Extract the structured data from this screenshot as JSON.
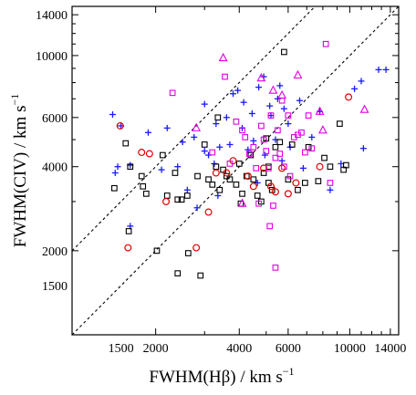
{
  "chart_data": {
    "type": "scatter",
    "xlabel": "FWHM(Hβ) / km s",
    "xlabel_sup": "−1",
    "ylabel": "FWHM(CIV) / km s",
    "ylabel_sup": "−1",
    "x_scale": "log",
    "y_scale": "log",
    "xlim": [
      1000,
      15000
    ],
    "ylim": [
      1000,
      15000
    ],
    "x_ticks": [
      1500,
      2000,
      4000,
      6000,
      10000,
      14000
    ],
    "x_tick_labels": [
      "1500",
      "2000",
      "4000",
      "6000",
      "10000",
      "14000"
    ],
    "y_ticks": [
      1500,
      2000,
      4000,
      6000,
      10000,
      14000
    ],
    "y_tick_labels": [
      "1500",
      "2000",
      "4000",
      "6000",
      "10000",
      "14000"
    ],
    "reference_lines": [
      {
        "style": "dashed",
        "relation": "y = x"
      },
      {
        "style": "dashed",
        "relation": "y = 2x"
      }
    ],
    "grid": false,
    "series": [
      {
        "marker": "plus",
        "color": "#1a1aff",
        "points": [
          [
            1400,
            6150
          ],
          [
            1430,
            3800
          ],
          [
            1460,
            4000
          ],
          [
            1500,
            5600
          ],
          [
            1620,
            4050
          ],
          [
            1620,
            2450
          ],
          [
            1880,
            5300
          ],
          [
            2100,
            3900
          ],
          [
            2200,
            5500
          ],
          [
            2400,
            4000
          ],
          [
            2500,
            4900
          ],
          [
            2600,
            3300
          ],
          [
            2750,
            5100
          ],
          [
            2820,
            2850
          ],
          [
            3000,
            6700
          ],
          [
            3000,
            4550
          ],
          [
            3100,
            4400
          ],
          [
            3250,
            4100
          ],
          [
            3300,
            5700
          ],
          [
            3350,
            3150
          ],
          [
            3400,
            4700
          ],
          [
            3600,
            6000
          ],
          [
            3700,
            4800
          ],
          [
            3800,
            7300
          ],
          [
            3950,
            7500
          ],
          [
            4100,
            5500
          ],
          [
            4150,
            6800
          ],
          [
            4300,
            4600
          ],
          [
            4450,
            6200
          ],
          [
            4500,
            4950
          ],
          [
            4650,
            3500
          ],
          [
            4700,
            7700
          ],
          [
            4900,
            8400
          ],
          [
            4950,
            4400
          ],
          [
            5150,
            6600
          ],
          [
            5200,
            6100
          ],
          [
            5400,
            5000
          ],
          [
            5500,
            7000
          ],
          [
            5600,
            7800
          ],
          [
            5700,
            4200
          ],
          [
            5800,
            6450
          ],
          [
            6000,
            5700
          ],
          [
            6100,
            4700
          ],
          [
            6600,
            6900
          ],
          [
            6800,
            3950
          ],
          [
            7300,
            5100
          ],
          [
            7800,
            6300
          ],
          [
            8500,
            3300
          ],
          [
            9300,
            4100
          ],
          [
            10400,
            7600
          ],
          [
            11000,
            8100
          ],
          [
            11200,
            4650
          ],
          [
            12700,
            8900
          ],
          [
            13500,
            8900
          ]
        ]
      },
      {
        "marker": "square",
        "color": "#000000",
        "points": [
          [
            1420,
            3350
          ],
          [
            1560,
            4850
          ],
          [
            1600,
            2350
          ],
          [
            1620,
            4000
          ],
          [
            1780,
            3700
          ],
          [
            1800,
            3400
          ],
          [
            1850,
            3200
          ],
          [
            2020,
            2000
          ],
          [
            2120,
            4400
          ],
          [
            2200,
            3150
          ],
          [
            2350,
            3800
          ],
          [
            2400,
            3050
          ],
          [
            2400,
            1660
          ],
          [
            2480,
            3050
          ],
          [
            2600,
            3150
          ],
          [
            2620,
            1960
          ],
          [
            2830,
            3700
          ],
          [
            2900,
            1630
          ],
          [
            3000,
            4800
          ],
          [
            3100,
            3600
          ],
          [
            3200,
            3450
          ],
          [
            3300,
            4000
          ],
          [
            3350,
            6000
          ],
          [
            3400,
            3300
          ],
          [
            3500,
            3900
          ],
          [
            3600,
            3700
          ],
          [
            3700,
            3600
          ],
          [
            3900,
            3450
          ],
          [
            4000,
            4100
          ],
          [
            4050,
            2950
          ],
          [
            4100,
            3200
          ],
          [
            4250,
            3700
          ],
          [
            4400,
            4400
          ],
          [
            4500,
            3600
          ],
          [
            4650,
            3150
          ],
          [
            4800,
            3000
          ],
          [
            4900,
            3800
          ],
          [
            5000,
            5050
          ],
          [
            5100,
            4000
          ],
          [
            5100,
            3500
          ],
          [
            5250,
            3300
          ],
          [
            5400,
            4700
          ],
          [
            5600,
            4900
          ],
          [
            5800,
            10300
          ],
          [
            6000,
            3600
          ],
          [
            6200,
            4800
          ],
          [
            6500,
            3300
          ],
          [
            6900,
            3500
          ],
          [
            7100,
            4700
          ],
          [
            7700,
            3550
          ],
          [
            8100,
            4300
          ],
          [
            8500,
            4000
          ],
          [
            9200,
            5700
          ],
          [
            9500,
            3900
          ],
          [
            9700,
            4050
          ]
        ]
      },
      {
        "marker": "circle",
        "color": "#e00000",
        "points": [
          [
            1490,
            5600
          ],
          [
            1590,
            2050
          ],
          [
            1780,
            4500
          ],
          [
            1900,
            4450
          ],
          [
            2180,
            3000
          ],
          [
            2800,
            2050
          ],
          [
            3100,
            2750
          ],
          [
            3300,
            3800
          ],
          [
            3600,
            3800
          ],
          [
            3800,
            4200
          ],
          [
            4300,
            3700
          ],
          [
            4500,
            3400
          ],
          [
            4900,
            3950
          ],
          [
            5200,
            3400
          ],
          [
            5400,
            3250
          ],
          [
            5700,
            3950
          ],
          [
            6000,
            3200
          ],
          [
            6400,
            3500
          ],
          [
            7800,
            4000
          ],
          [
            9900,
            7100
          ]
        ]
      },
      {
        "marker": "square",
        "color": "#e000e0",
        "points": [
          [
            2300,
            7350
          ],
          [
            3200,
            4500
          ],
          [
            3550,
            8400
          ],
          [
            3700,
            4100
          ],
          [
            3900,
            5800
          ],
          [
            4100,
            5400
          ],
          [
            4200,
            5100
          ],
          [
            4350,
            4450
          ],
          [
            4500,
            4700
          ],
          [
            4600,
            3950
          ],
          [
            4700,
            2950
          ],
          [
            4800,
            5600
          ],
          [
            4900,
            5000
          ],
          [
            5000,
            4550
          ],
          [
            5100,
            3950
          ],
          [
            5200,
            6100
          ],
          [
            5300,
            2900
          ],
          [
            5400,
            4300
          ],
          [
            5500,
            5400
          ],
          [
            5600,
            4450
          ],
          [
            5700,
            6900
          ],
          [
            5800,
            4000
          ],
          [
            6000,
            6100
          ],
          [
            6100,
            3700
          ],
          [
            6300,
            5100
          ],
          [
            6500,
            5200
          ],
          [
            6700,
            5300
          ],
          [
            6900,
            4500
          ],
          [
            7100,
            6100
          ],
          [
            7300,
            4650
          ],
          [
            8200,
            11000
          ],
          [
            8500,
            3500
          ],
          [
            5150,
            2450
          ],
          [
            5400,
            1740
          ]
        ]
      },
      {
        "marker": "triangle",
        "color": "#e000e0",
        "points": [
          [
            2800,
            5500
          ],
          [
            3500,
            9800
          ],
          [
            4100,
            2950
          ],
          [
            4800,
            8300
          ],
          [
            5300,
            7500
          ],
          [
            5700,
            7200
          ],
          [
            6500,
            8500
          ],
          [
            7800,
            6300
          ],
          [
            8000,
            5400
          ],
          [
            11300,
            6400
          ]
        ]
      }
    ]
  }
}
